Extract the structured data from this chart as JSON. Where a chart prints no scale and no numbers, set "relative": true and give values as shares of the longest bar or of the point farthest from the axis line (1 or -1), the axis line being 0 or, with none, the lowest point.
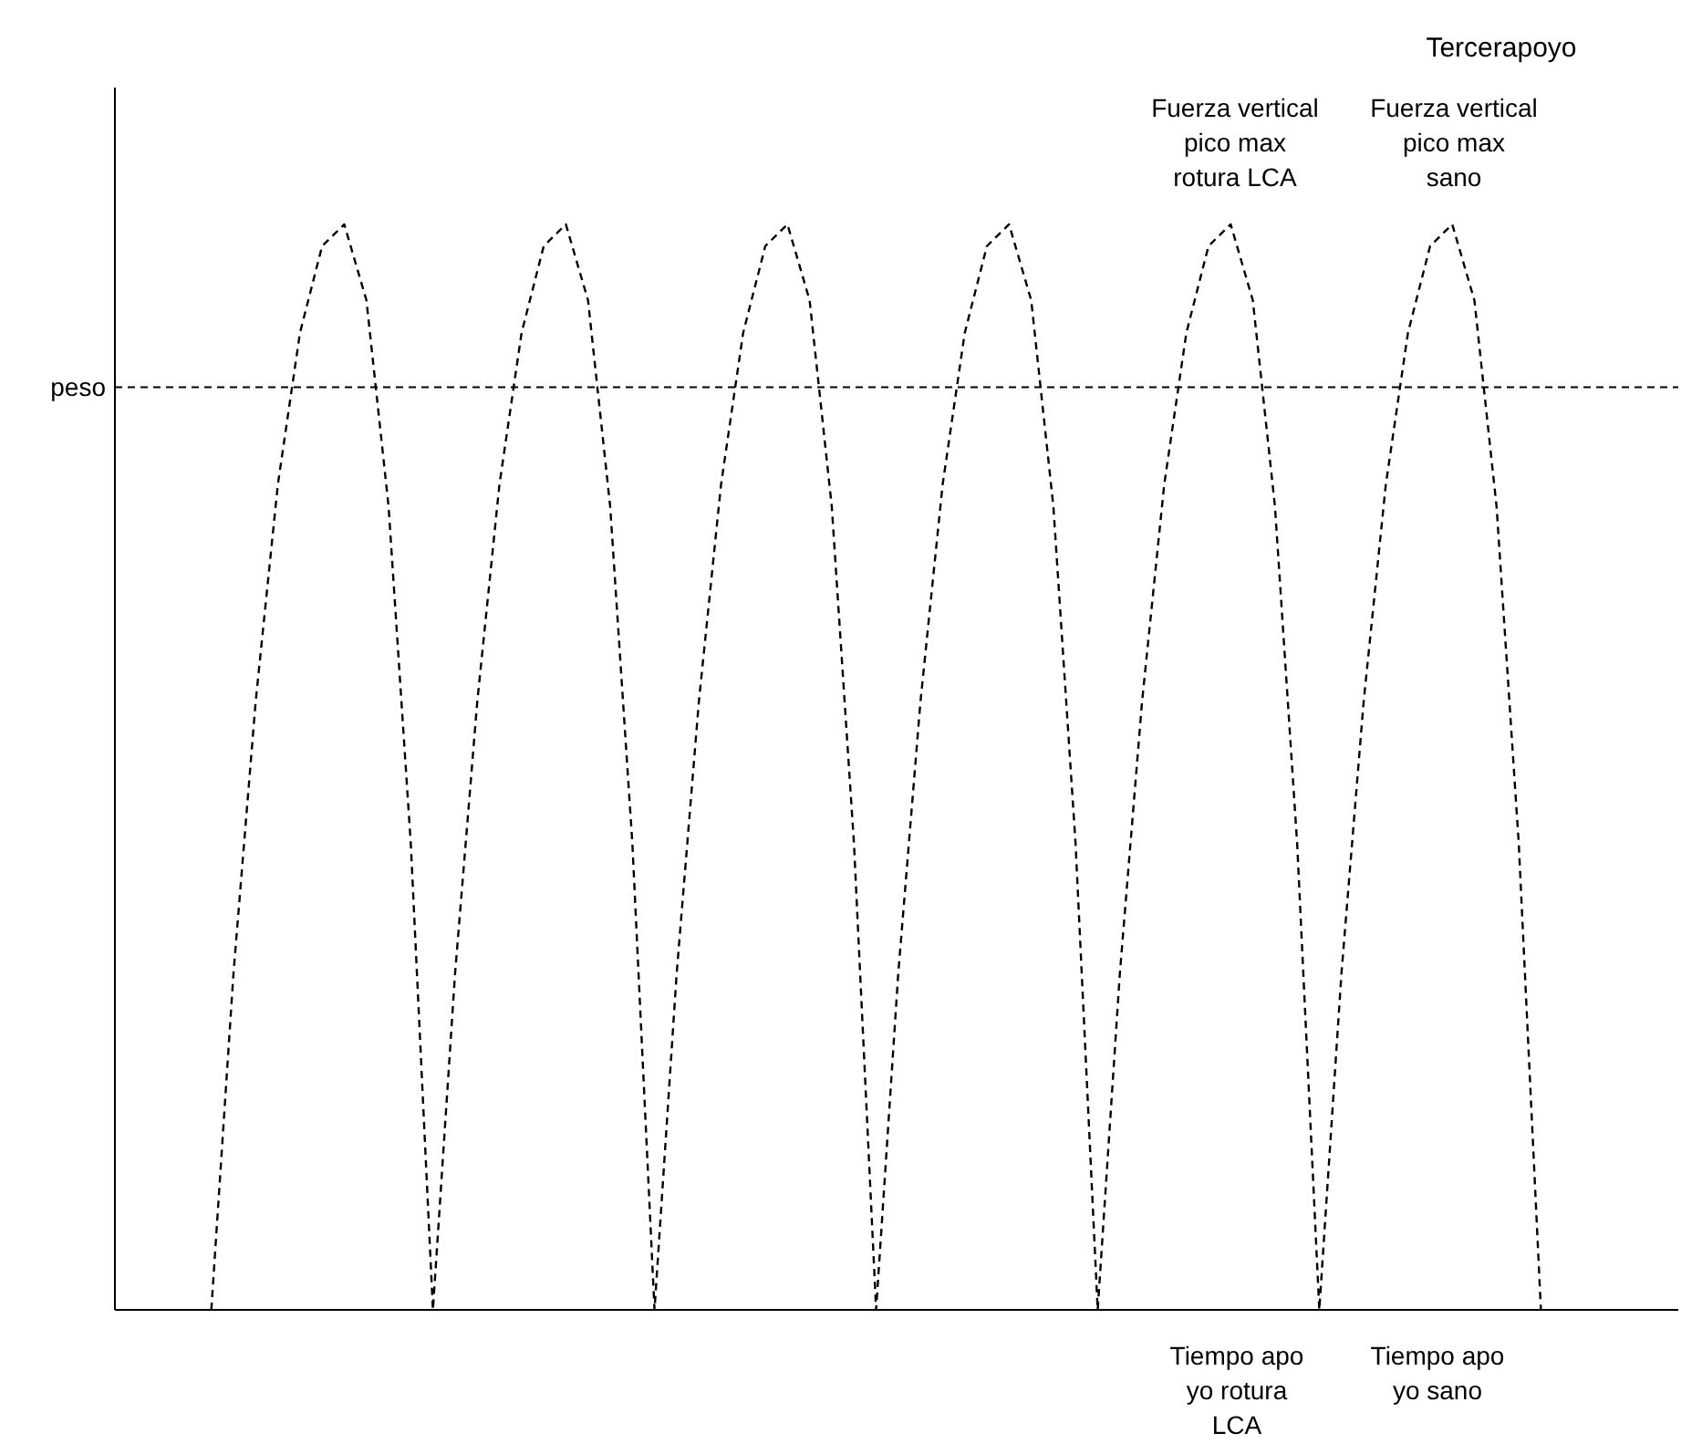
{
  "chart_data": {
    "type": "line",
    "title": "Tercerapoyo",
    "relative": true,
    "marker": "none",
    "line_style": "dashed",
    "categories": [
      null,
      null,
      null,
      null,
      null,
      null,
      null,
      null,
      null,
      null,
      null,
      null,
      null,
      null,
      null,
      null,
      null,
      null,
      null,
      null,
      null,
      null,
      null,
      null,
      null,
      null,
      null,
      null,
      null,
      null,
      null,
      null,
      null,
      null,
      null,
      null,
      null,
      null,
      null,
      null,
      null,
      null,
      null,
      null,
      null,
      null,
      null,
      null,
      null,
      null,
      null,
      null,
      null,
      null,
      null,
      null,
      null,
      null,
      null,
      null,
      null,
      null,
      null,
      null,
      null,
      null,
      null,
      null,
      null,
      null,
      null
    ],
    "series": [
      {
        "color": "#000000",
        "values": [
          null,
          null,
          null,
          null,
          0,
          0.31,
          0.56,
          0.76,
          0.9,
          0.98,
          1,
          0.93,
          0.74,
          0.43,
          0,
          0.31,
          0.56,
          0.76,
          0.9,
          0.98,
          1,
          0.93,
          0.74,
          0.43,
          0,
          0.31,
          0.56,
          0.76,
          0.9,
          0.98,
          1,
          0.93,
          0.74,
          0.43,
          0,
          0.31,
          0.56,
          0.76,
          0.9,
          0.98,
          1,
          0.93,
          0.74,
          0.43,
          0,
          0.31,
          0.56,
          0.76,
          0.9,
          0.98,
          1,
          0.93,
          0.74,
          0.43,
          0,
          0.31,
          0.56,
          0.76,
          0.9,
          0.98,
          1,
          0.93,
          0.74,
          0.43,
          0,
          null,
          null,
          null,
          null,
          null,
          null
        ]
      }
    ],
    "ref_lines": [
      {
        "axis": "y",
        "value": 0.85,
        "label": "peso",
        "color": "#000000",
        "line_style": "dashed"
      }
    ],
    "annotations": [
      "Fuerza vertical\npico max\nrotura LCA",
      "Fuerza vertical\npico max\nsano",
      "Tiempo apo\nyo rotura\nLCA",
      "Tiempo apo\nyo sano"
    ]
  }
}
